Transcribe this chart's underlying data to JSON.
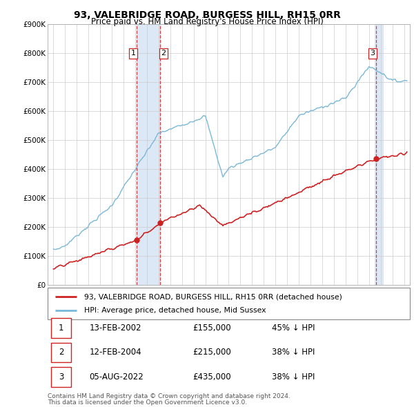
{
  "title": "93, VALEBRIDGE ROAD, BURGESS HILL, RH15 0RR",
  "subtitle": "Price paid vs. HM Land Registry's House Price Index (HPI)",
  "legend_line1": "93, VALEBRIDGE ROAD, BURGESS HILL, RH15 0RR (detached house)",
  "legend_line2": "HPI: Average price, detached house, Mid Sussex",
  "footnote1": "Contains HM Land Registry data © Crown copyright and database right 2024.",
  "footnote2": "This data is licensed under the Open Government Licence v3.0.",
  "transactions": [
    {
      "num": 1,
      "date": "13-FEB-2002",
      "price": "£155,000",
      "change": "45% ↓ HPI"
    },
    {
      "num": 2,
      "date": "12-FEB-2004",
      "price": "£215,000",
      "change": "38% ↓ HPI"
    },
    {
      "num": 3,
      "date": "05-AUG-2022",
      "price": "£435,000",
      "change": "38% ↓ HPI"
    }
  ],
  "sale_years": [
    2002.12,
    2004.12,
    2022.62
  ],
  "sale_prices": [
    155000,
    215000,
    435000
  ],
  "hpi_color": "#7ab8d8",
  "price_color": "#cc2222",
  "shade_color": "#dce8f5",
  "ylim": [
    0,
    900000
  ],
  "yticks": [
    0,
    100000,
    200000,
    300000,
    400000,
    500000,
    600000,
    700000,
    800000,
    900000
  ],
  "ytick_labels": [
    "£0",
    "£100K",
    "£200K",
    "£300K",
    "£400K",
    "£500K",
    "£600K",
    "£700K",
    "£800K",
    "£900K"
  ],
  "xlim": [
    1994.5,
    2025.5
  ],
  "xticks": [
    1995,
    1996,
    1997,
    1998,
    1999,
    2000,
    2001,
    2002,
    2003,
    2004,
    2005,
    2006,
    2007,
    2008,
    2009,
    2010,
    2011,
    2012,
    2013,
    2014,
    2015,
    2016,
    2017,
    2018,
    2019,
    2020,
    2021,
    2022,
    2023,
    2024,
    2025
  ]
}
